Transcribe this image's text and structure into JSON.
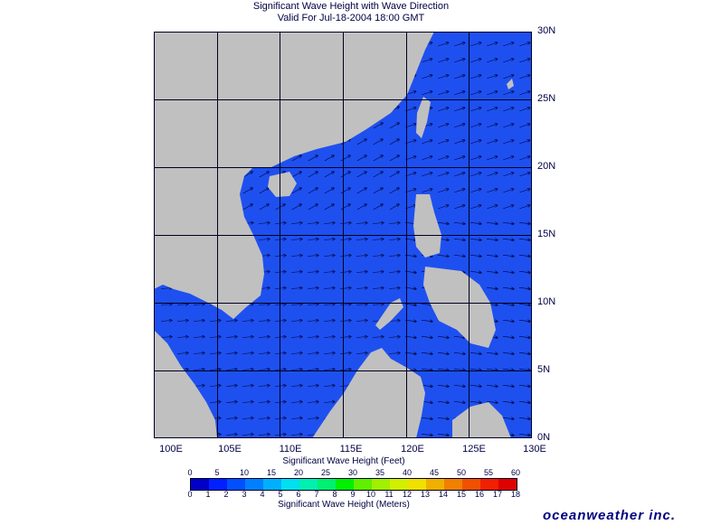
{
  "title": "Significant Wave Height with Wave Direction",
  "valid": "Valid For Jul-18-2004 18:00 GMT",
  "lat_labels": [
    "30N",
    "25N",
    "20N",
    "15N",
    "10N",
    "5N",
    "0N"
  ],
  "lon_labels": [
    "100E",
    "105E",
    "110E",
    "115E",
    "120E",
    "125E",
    "130E"
  ],
  "feet_scale": {
    "title": "Significant Wave Height (Feet)",
    "ticks": [
      "0",
      "5",
      "10",
      "15",
      "20",
      "25",
      "30",
      "35",
      "40",
      "45",
      "50",
      "55",
      "60"
    ]
  },
  "meter_scale": {
    "title": "Significant Wave Height (Meters)",
    "ticks": [
      "0",
      "1",
      "2",
      "3",
      "4",
      "5",
      "6",
      "7",
      "8",
      "9",
      "10",
      "11",
      "12",
      "13",
      "14",
      "15",
      "16",
      "17",
      "18"
    ]
  },
  "colors": [
    "#0000c8",
    "#0020ff",
    "#0050ff",
    "#0080ff",
    "#00b0ff",
    "#00e0f0",
    "#00f0b0",
    "#00f070",
    "#00f000",
    "#60f000",
    "#a0f000",
    "#d0f000",
    "#f0e000",
    "#f0b000",
    "#f08000",
    "#f05000",
    "#f02000",
    "#e00000"
  ],
  "ocean_color": "#1e50f0",
  "land_color": "#c0c0c0",
  "logo": "oceanweather inc."
}
